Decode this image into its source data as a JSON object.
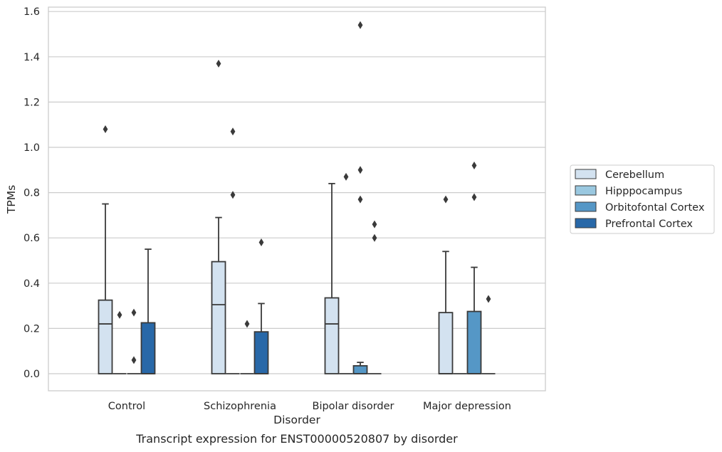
{
  "chart_data": {
    "type": "box",
    "xlabel": "Disorder",
    "ylabel": "TPMs",
    "caption": "Transcript expression for ENST00000520807 by disorder",
    "ylim": [
      -0.075,
      1.62
    ],
    "yticks": [
      "0.0",
      "0.2",
      "0.4",
      "0.6",
      "0.8",
      "1.0",
      "1.2",
      "1.4",
      "1.6"
    ],
    "grid": true,
    "legend_position": "right",
    "categories": [
      "Control",
      "Schizophrenia",
      "Bipolar disorder",
      "Major depression"
    ],
    "series": [
      {
        "name": "Cerebellum",
        "color": "#d3e2f0",
        "boxes": [
          {
            "q1": 0,
            "median": 0.22,
            "q3": 0.325,
            "whisker_low": 0,
            "whisker_high": 0.75,
            "outliers": [
              1.08
            ]
          },
          {
            "q1": 0,
            "median": 0.305,
            "q3": 0.495,
            "whisker_low": 0,
            "whisker_high": 0.69,
            "outliers": [
              1.37
            ]
          },
          {
            "q1": 0,
            "median": 0.22,
            "q3": 0.335,
            "whisker_low": 0,
            "whisker_high": 0.84,
            "outliers": []
          },
          {
            "q1": 0,
            "median": 0,
            "q3": 0.27,
            "whisker_low": 0,
            "whisker_high": 0.54,
            "outliers": [
              0.77
            ]
          }
        ]
      },
      {
        "name": "Hipppocampus",
        "color": "#9ac8e0",
        "boxes": [
          {
            "q1": 0,
            "median": 0,
            "q3": 0,
            "whisker_low": 0,
            "whisker_high": 0,
            "outliers": [
              0.26
            ]
          },
          {
            "q1": 0,
            "median": 0,
            "q3": 0,
            "whisker_low": 0,
            "whisker_high": 0,
            "outliers": [
              1.07,
              0.79
            ]
          },
          {
            "q1": 0,
            "median": 0,
            "q3": 0,
            "whisker_low": 0,
            "whisker_high": 0,
            "outliers": [
              0.87
            ]
          },
          {
            "q1": 0,
            "median": 0,
            "q3": 0,
            "whisker_low": 0,
            "whisker_high": 0,
            "outliers": []
          }
        ]
      },
      {
        "name": "Orbitofontal Cortex",
        "color": "#5597c6",
        "boxes": [
          {
            "q1": 0,
            "median": 0,
            "q3": 0,
            "whisker_low": 0,
            "whisker_high": 0,
            "outliers": [
              0.27,
              0.06
            ]
          },
          {
            "q1": 0,
            "median": 0,
            "q3": 0,
            "whisker_low": 0,
            "whisker_high": 0,
            "outliers": [
              0.22
            ]
          },
          {
            "q1": 0,
            "median": 0,
            "q3": 0.035,
            "whisker_low": 0,
            "whisker_high": 0.05,
            "outliers": [
              1.54,
              0.9,
              0.77
            ]
          },
          {
            "q1": 0,
            "median": 0,
            "q3": 0.275,
            "whisker_low": 0,
            "whisker_high": 0.47,
            "outliers": [
              0.92,
              0.78
            ]
          }
        ]
      },
      {
        "name": "Prefrontal Cortex",
        "color": "#2868a8",
        "boxes": [
          {
            "q1": 0,
            "median": 0,
            "q3": 0.225,
            "whisker_low": 0,
            "whisker_high": 0.55,
            "outliers": []
          },
          {
            "q1": 0,
            "median": 0,
            "q3": 0.185,
            "whisker_low": 0,
            "whisker_high": 0.31,
            "outliers": [
              0.58
            ]
          },
          {
            "q1": 0,
            "median": 0,
            "q3": 0,
            "whisker_low": 0,
            "whisker_high": 0,
            "outliers": [
              0.66,
              0.6
            ]
          },
          {
            "q1": 0,
            "median": 0,
            "q3": 0,
            "whisker_low": 0,
            "whisker_high": 0,
            "outliers": [
              0.33
            ]
          }
        ]
      }
    ]
  }
}
